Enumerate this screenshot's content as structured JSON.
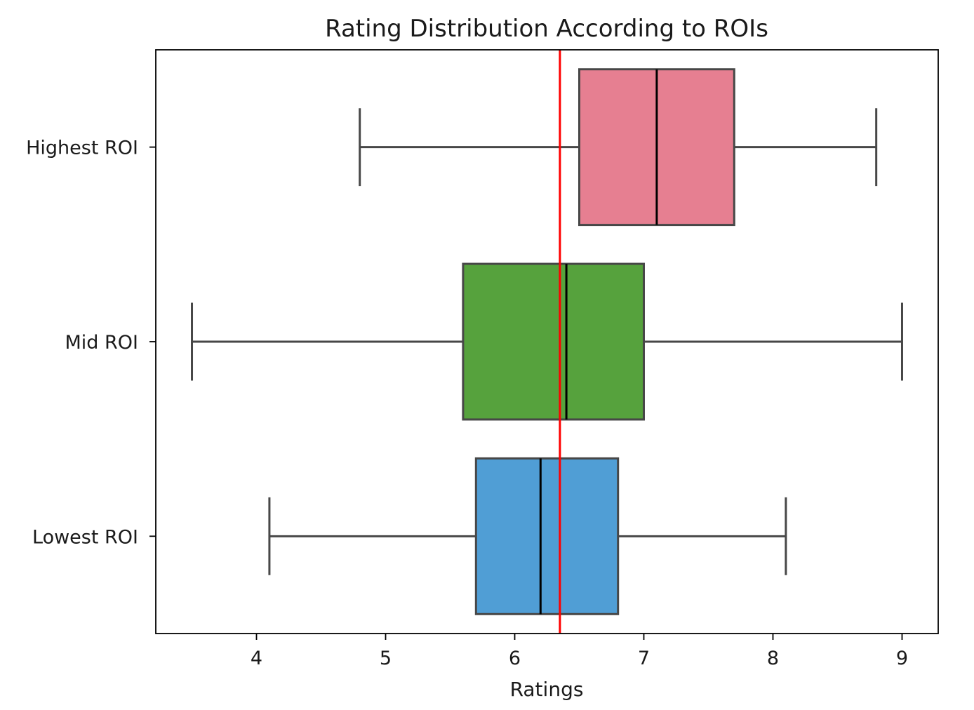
{
  "chart_data": {
    "type": "boxplot",
    "orientation": "horizontal",
    "title": "Rating Distribution According to ROIs",
    "xlabel": "Ratings",
    "ylabel": "",
    "xlim": [
      3.22,
      9.28
    ],
    "xticks": [
      4,
      5,
      6,
      7,
      8,
      9
    ],
    "grid": false,
    "reference_line": {
      "x": 6.35,
      "color": "#ff0000"
    },
    "series": [
      {
        "name": "Highest ROI",
        "whisker_low": 4.8,
        "q1": 6.5,
        "median": 7.1,
        "q3": 7.7,
        "whisker_high": 8.8,
        "color": "#e67f91"
      },
      {
        "name": "Mid ROI",
        "whisker_low": 3.5,
        "q1": 5.6,
        "median": 6.4,
        "q3": 7.0,
        "whisker_high": 9.0,
        "color": "#56a23d"
      },
      {
        "name": "Lowest ROI",
        "whisker_low": 4.1,
        "q1": 5.7,
        "median": 6.2,
        "q3": 6.8,
        "whisker_high": 8.1,
        "color": "#509ed5"
      }
    ]
  }
}
